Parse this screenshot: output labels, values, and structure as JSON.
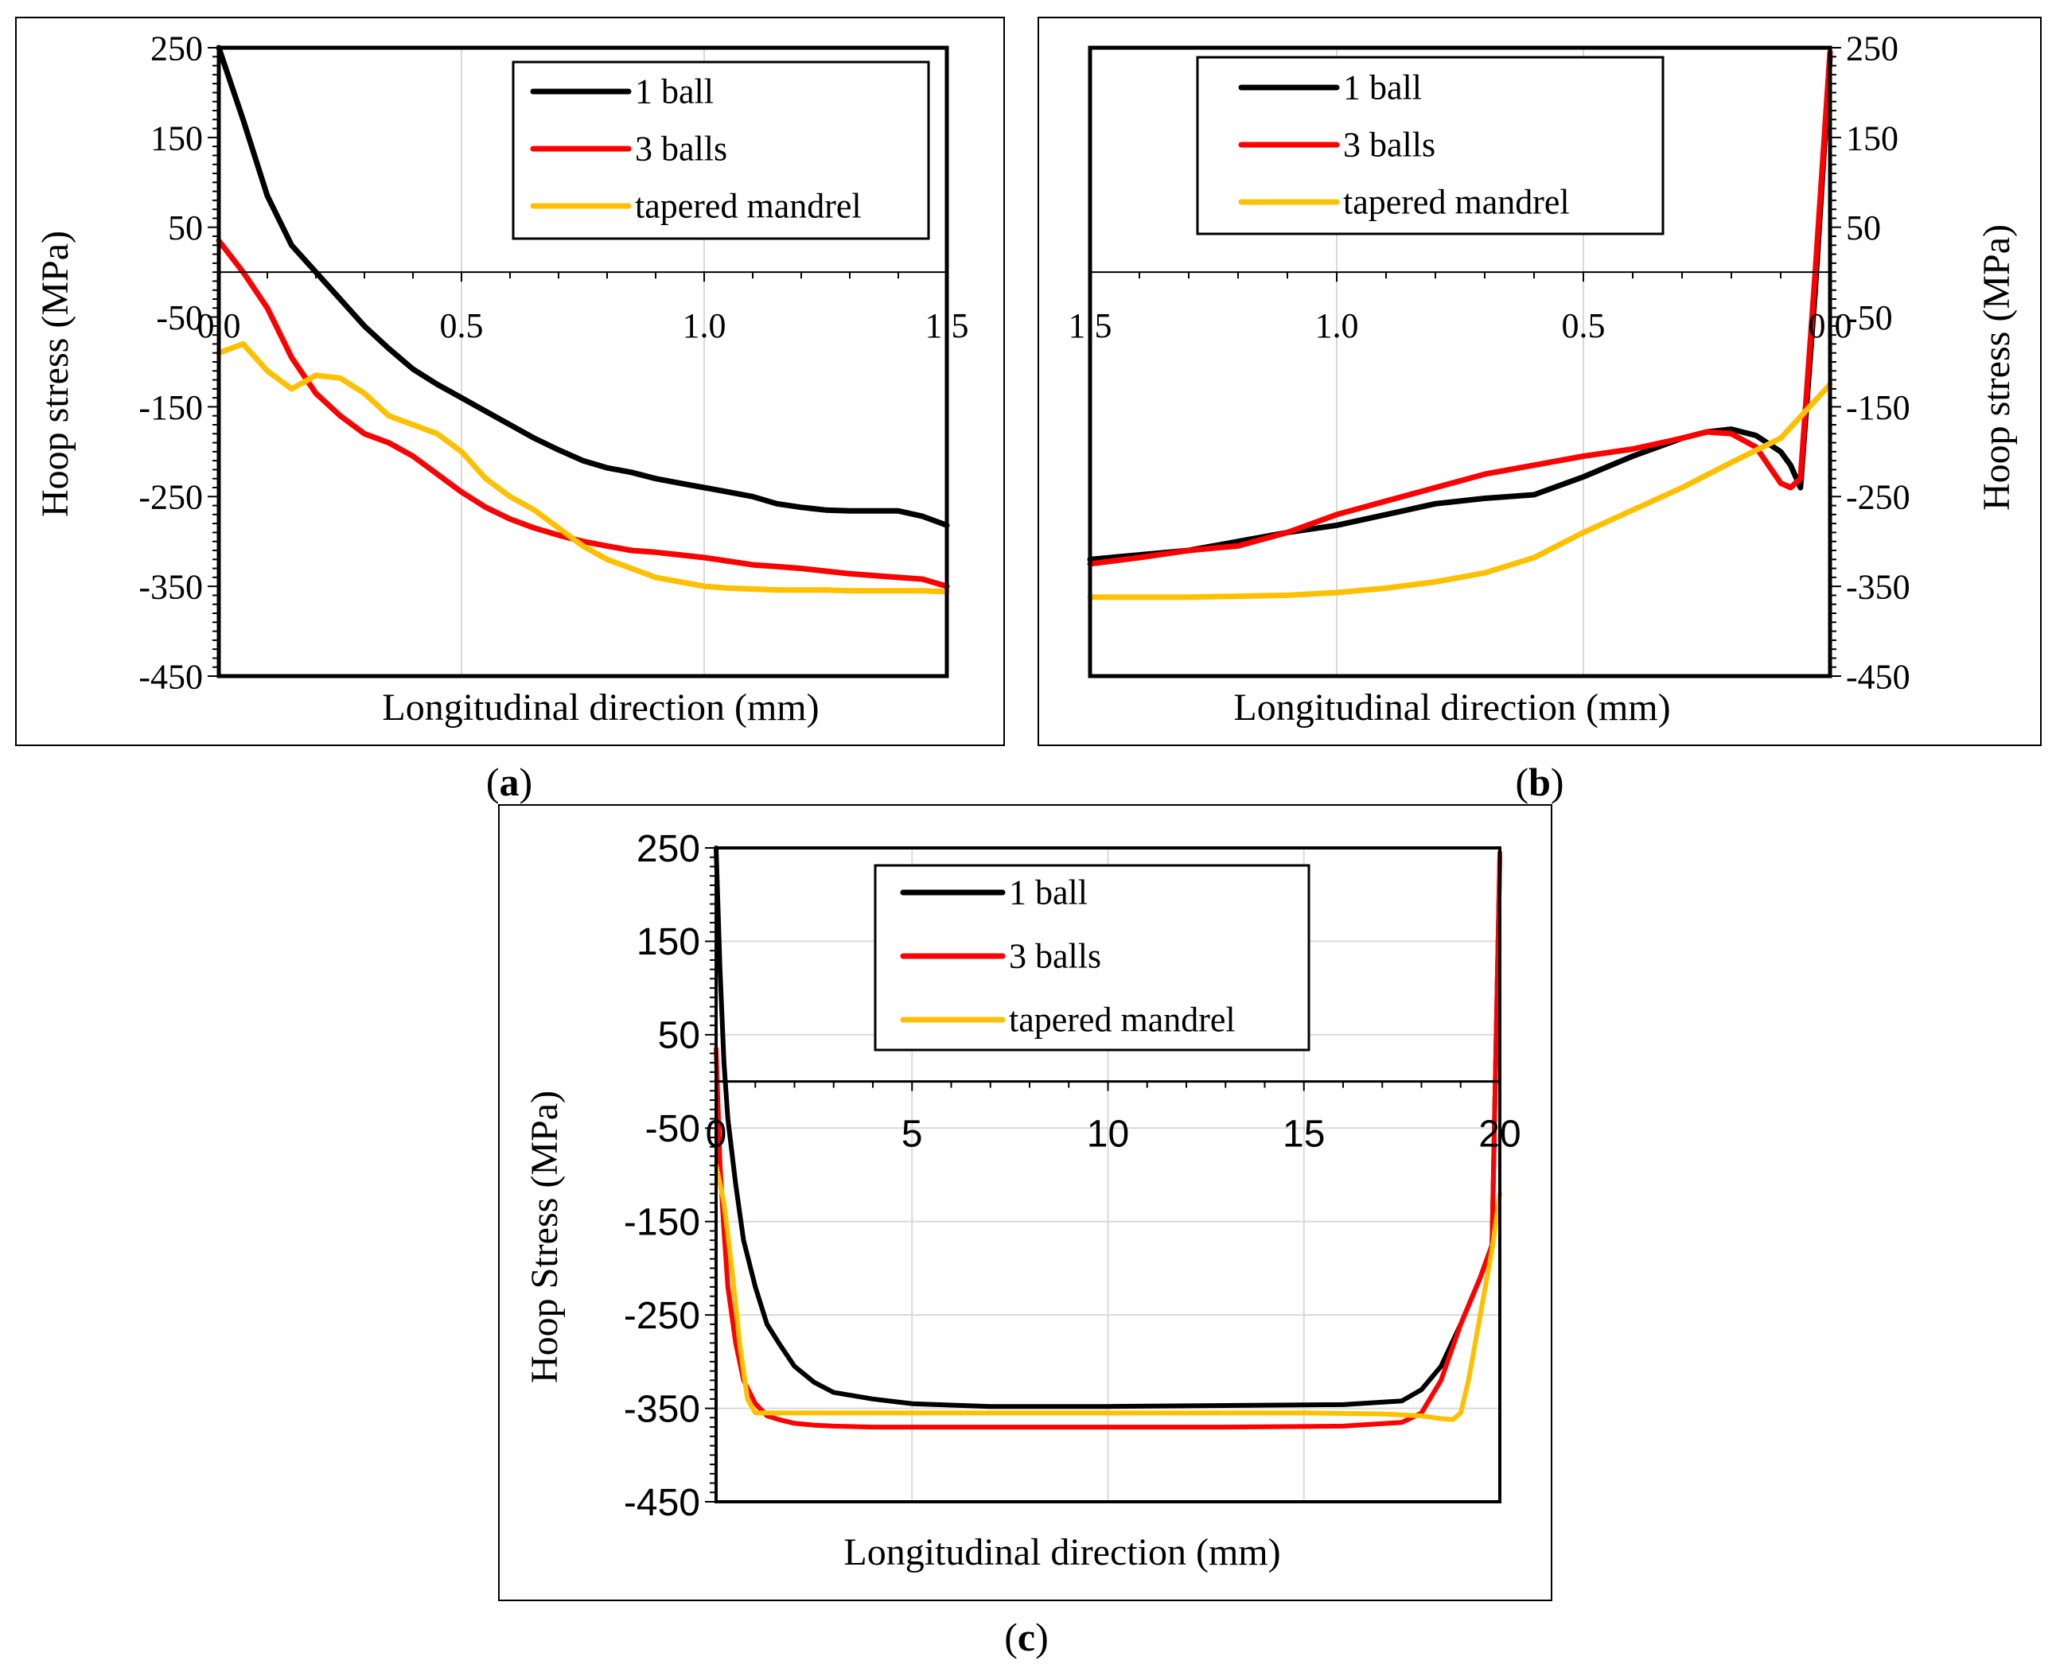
{
  "figure": {
    "captions": [
      "(a)",
      "(b)",
      "(c)"
    ],
    "caption_letters": [
      "a",
      "b",
      "c"
    ]
  },
  "colors": {
    "1 ball": "#000000",
    "3 balls": "#ff0000",
    "tapered mandrel": "#ffc000",
    "grid": "#d9d9d9",
    "frame": "#000000"
  },
  "chart_data": [
    {
      "panel": "a",
      "type": "line",
      "xlabel": "Longitudinal direction (mm)",
      "ylabel": "Hoop stress (MPa)",
      "xlim": [
        0,
        1.5
      ],
      "ylim": [
        -450,
        250
      ],
      "x_reversed": false,
      "xticks": [
        0,
        0.5,
        1.0,
        1.5
      ],
      "xtick_labels": [
        "0.0",
        "0.5",
        "1.0",
        "1.5"
      ],
      "yticks": [
        250,
        150,
        50,
        -50,
        -150,
        -250,
        -350,
        -450
      ],
      "ytick_labels": [
        "250",
        "150",
        "50",
        "-50",
        "-150",
        "-250",
        "-350",
        "-450"
      ],
      "yaxis_side": "left",
      "legend_position": "top-right",
      "series": [
        {
          "name": "1 ball",
          "x": [
            0,
            0.05,
            0.1,
            0.15,
            0.2,
            0.25,
            0.3,
            0.35,
            0.4,
            0.45,
            0.5,
            0.55,
            0.6,
            0.65,
            0.7,
            0.75,
            0.8,
            0.85,
            0.9,
            0.95,
            1.0,
            1.05,
            1.1,
            1.15,
            1.2,
            1.25,
            1.3,
            1.35,
            1.4,
            1.45,
            1.5
          ],
          "y": [
            250,
            170,
            85,
            30,
            0,
            -30,
            -60,
            -85,
            -108,
            -125,
            -140,
            -155,
            -170,
            -185,
            -198,
            -210,
            -218,
            -223,
            -230,
            -235,
            -240,
            -245,
            -250,
            -258,
            -262,
            -265,
            -266,
            -266,
            -266,
            -272,
            -282
          ]
        },
        {
          "name": "3 balls",
          "x": [
            0,
            0.05,
            0.1,
            0.15,
            0.2,
            0.25,
            0.3,
            0.35,
            0.4,
            0.45,
            0.5,
            0.55,
            0.6,
            0.65,
            0.7,
            0.75,
            0.8,
            0.85,
            0.9,
            0.95,
            1.0,
            1.05,
            1.1,
            1.15,
            1.2,
            1.25,
            1.3,
            1.35,
            1.4,
            1.45,
            1.5
          ],
          "y": [
            35,
            0,
            -40,
            -95,
            -135,
            -160,
            -180,
            -190,
            -205,
            -225,
            -245,
            -262,
            -275,
            -285,
            -293,
            -300,
            -305,
            -310,
            -312,
            -315,
            -318,
            -322,
            -326,
            -328,
            -330,
            -333,
            -336,
            -338,
            -340,
            -342,
            -350
          ]
        },
        {
          "name": "tapered mandrel",
          "x": [
            0,
            0.05,
            0.1,
            0.15,
            0.2,
            0.25,
            0.3,
            0.35,
            0.4,
            0.45,
            0.5,
            0.55,
            0.6,
            0.65,
            0.7,
            0.75,
            0.8,
            0.85,
            0.9,
            0.95,
            1.0,
            1.05,
            1.1,
            1.15,
            1.2,
            1.25,
            1.3,
            1.35,
            1.4,
            1.45,
            1.5
          ],
          "y": [
            -90,
            -80,
            -110,
            -130,
            -115,
            -118,
            -135,
            -160,
            -170,
            -180,
            -200,
            -230,
            -250,
            -265,
            -285,
            -305,
            -320,
            -330,
            -340,
            -345,
            -350,
            -352,
            -353,
            -354,
            -354,
            -354,
            -355,
            -355,
            -355,
            -355,
            -356
          ]
        }
      ]
    },
    {
      "panel": "b",
      "type": "line",
      "xlabel": "Longitudinal direction (mm)",
      "ylabel": "Hoop stress (MPa)",
      "xlim": [
        1.5,
        0
      ],
      "ylim": [
        -450,
        250
      ],
      "x_reversed": true,
      "xticks": [
        1.5,
        1.0,
        0.5,
        0
      ],
      "xtick_labels": [
        "1.5",
        "1.0",
        "0.5",
        "0.0"
      ],
      "yticks": [
        250,
        150,
        50,
        -50,
        -150,
        -250,
        -350,
        -450
      ],
      "ytick_labels": [
        "250",
        "150",
        "50",
        "-50",
        "-150",
        "-250",
        "-350",
        "-450"
      ],
      "yaxis_side": "right",
      "legend_position": "top-left",
      "series": [
        {
          "name": "1 ball",
          "x": [
            1.5,
            1.4,
            1.3,
            1.2,
            1.1,
            1.0,
            0.9,
            0.8,
            0.7,
            0.6,
            0.5,
            0.4,
            0.3,
            0.25,
            0.2,
            0.15,
            0.1,
            0.08,
            0.06,
            0.03,
            0
          ],
          "y": [
            -320,
            -315,
            -310,
            -300,
            -290,
            -282,
            -270,
            -258,
            -252,
            -248,
            -228,
            -205,
            -185,
            -178,
            -175,
            -182,
            -200,
            -215,
            -240,
            -20,
            240
          ]
        },
        {
          "name": "3 balls",
          "x": [
            1.5,
            1.4,
            1.3,
            1.2,
            1.1,
            1.0,
            0.9,
            0.8,
            0.7,
            0.6,
            0.5,
            0.4,
            0.3,
            0.25,
            0.2,
            0.15,
            0.1,
            0.08,
            0.06,
            0.03,
            0
          ],
          "y": [
            -325,
            -318,
            -310,
            -305,
            -290,
            -270,
            -255,
            -240,
            -225,
            -215,
            -205,
            -197,
            -185,
            -178,
            -180,
            -195,
            -235,
            -240,
            -230,
            0,
            245
          ]
        },
        {
          "name": "tapered mandrel",
          "x": [
            1.5,
            1.4,
            1.3,
            1.2,
            1.1,
            1.0,
            0.9,
            0.8,
            0.7,
            0.6,
            0.5,
            0.4,
            0.3,
            0.2,
            0.1,
            0.05,
            0
          ],
          "y": [
            -362,
            -362,
            -362,
            -361,
            -360,
            -357,
            -352,
            -345,
            -335,
            -318,
            -290,
            -265,
            -240,
            -212,
            -185,
            -155,
            -125
          ]
        }
      ]
    },
    {
      "panel": "c",
      "type": "line",
      "xlabel": "Longitudinal direction (mm)",
      "ylabel": "Hoop Stress (MPa)",
      "xlim": [
        0,
        20
      ],
      "ylim": [
        -450,
        250
      ],
      "x_reversed": false,
      "xticks": [
        0,
        5,
        10,
        15,
        20
      ],
      "xtick_labels": [
        "0",
        "5",
        "10",
        "15",
        "20"
      ],
      "yticks": [
        250,
        150,
        50,
        -50,
        -150,
        -250,
        -350,
        -450
      ],
      "ytick_labels": [
        "250",
        "150",
        "50",
        "-50",
        "-150",
        "-250",
        "-350",
        "-450"
      ],
      "yaxis_side": "left",
      "legend_position": "top-center",
      "series": [
        {
          "name": "1 ball",
          "x": [
            0,
            0.1,
            0.2,
            0.3,
            0.5,
            0.7,
            1.0,
            1.3,
            1.6,
            2.0,
            2.5,
            3.0,
            4.0,
            5.0,
            7.0,
            10.0,
            13.0,
            16.0,
            17.5,
            18.0,
            18.5,
            19.0,
            19.5,
            19.8,
            20.0
          ],
          "y": [
            250,
            120,
            20,
            -40,
            -110,
            -170,
            -220,
            -260,
            -280,
            -305,
            -322,
            -333,
            -340,
            -345,
            -348,
            -348,
            -347,
            -346,
            -342,
            -330,
            -305,
            -260,
            -210,
            -175,
            240
          ]
        },
        {
          "name": "3 balls",
          "x": [
            0,
            0.1,
            0.2,
            0.3,
            0.5,
            0.7,
            1.0,
            1.3,
            1.6,
            2.0,
            2.5,
            3.0,
            4.0,
            5.0,
            7.0,
            10.0,
            13.0,
            16.0,
            17.5,
            18.0,
            18.5,
            19.0,
            19.5,
            19.8,
            20.0
          ],
          "y": [
            35,
            -90,
            -160,
            -220,
            -280,
            -320,
            -345,
            -358,
            -362,
            -366,
            -368,
            -369,
            -370,
            -370,
            -370,
            -370,
            -370,
            -369,
            -365,
            -355,
            -320,
            -260,
            -210,
            -175,
            245
          ]
        },
        {
          "name": "tapered mandrel",
          "x": [
            0,
            0.2,
            0.4,
            0.6,
            0.8,
            1.0,
            1.5,
            2.0,
            3.0,
            5.0,
            10.0,
            15.0,
            17.0,
            18.0,
            18.5,
            18.8,
            19.0,
            19.2,
            19.5,
            19.8,
            20.0
          ],
          "y": [
            -90,
            -130,
            -200,
            -280,
            -340,
            -355,
            -355,
            -355,
            -355,
            -355,
            -355,
            -355,
            -356,
            -358,
            -361,
            -362,
            -355,
            -320,
            -250,
            -180,
            -120
          ]
        }
      ]
    }
  ]
}
